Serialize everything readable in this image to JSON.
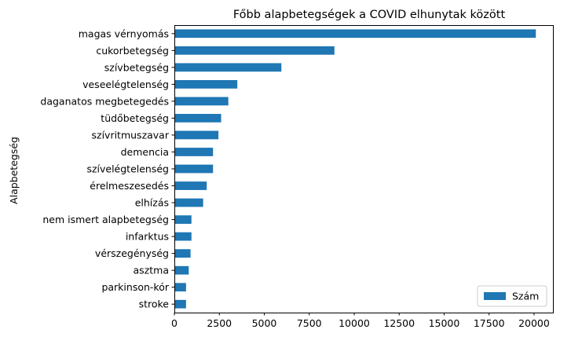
{
  "chart_data": {
    "type": "bar",
    "orientation": "horizontal",
    "title": "Főbb alapbetegségek a COVID elhunytak között",
    "xlabel": "",
    "ylabel": "Alapbetegség",
    "categories": [
      "magas vérnyomás",
      "cukorbetegség",
      "szívbetegség",
      "veseelégtelenség",
      "daganatos megbetegedés",
      "tüdőbetegség",
      "szívritmuszavar",
      "demencia",
      "szívelégtelenség",
      "érelmeszesedés",
      "elhízás",
      "nem ismert alapbetegség",
      "infarktus",
      "vérszegénység",
      "asztma",
      "parkinson-kór",
      "stroke"
    ],
    "series": [
      {
        "name": "Szám",
        "color": "#1f77b4",
        "values": [
          20100,
          8900,
          5950,
          3500,
          3000,
          2600,
          2450,
          2150,
          2150,
          1800,
          1600,
          950,
          950,
          900,
          800,
          650,
          650
        ]
      }
    ],
    "xlim": [
      0,
      21050
    ],
    "xticks": [
      0,
      2500,
      5000,
      7500,
      10000,
      12500,
      15000,
      17500,
      20000
    ],
    "xtick_labels": [
      "0",
      "2500",
      "5000",
      "7500",
      "10000",
      "12500",
      "15000",
      "17500",
      "20000"
    ],
    "grid": false,
    "legend": {
      "position": "lower-right",
      "entries": [
        "Szám"
      ]
    }
  }
}
